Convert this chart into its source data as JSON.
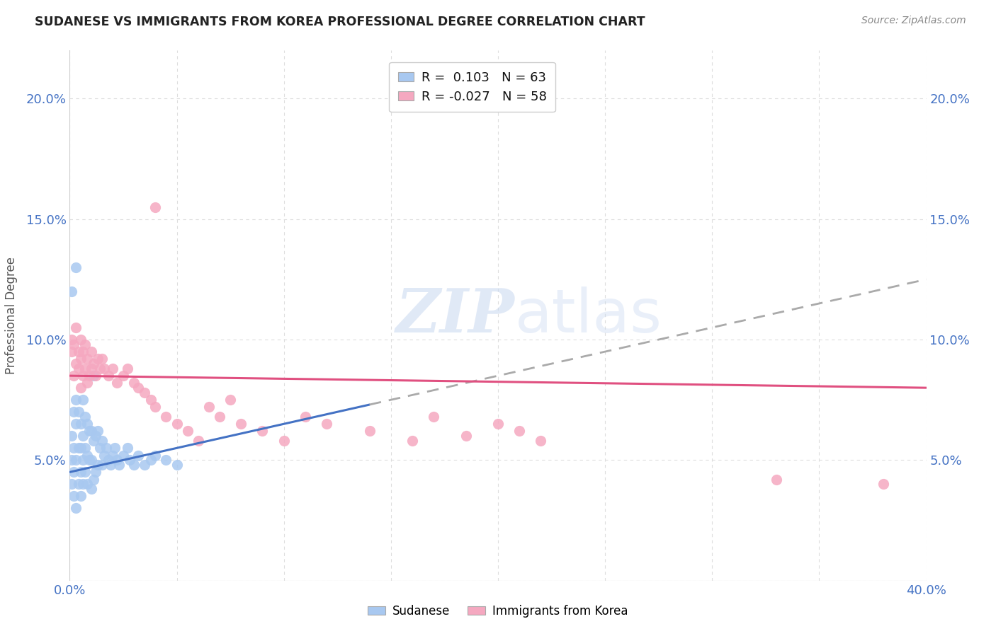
{
  "title": "SUDANESE VS IMMIGRANTS FROM KOREA PROFESSIONAL DEGREE CORRELATION CHART",
  "source": "Source: ZipAtlas.com",
  "ylabel": "Professional Degree",
  "xlim": [
    0.0,
    0.4
  ],
  "ylim": [
    0.0,
    0.22
  ],
  "x_ticks": [
    0.0,
    0.05,
    0.1,
    0.15,
    0.2,
    0.25,
    0.3,
    0.35,
    0.4
  ],
  "y_ticks": [
    0.0,
    0.05,
    0.1,
    0.15,
    0.2
  ],
  "blue_R": 0.103,
  "blue_N": 63,
  "pink_R": -0.027,
  "pink_N": 58,
  "blue_color": "#A8C8F0",
  "pink_color": "#F5A8C0",
  "blue_line_color": "#4472C4",
  "pink_line_color": "#E05080",
  "dash_color": "#AAAAAA",
  "watermark_color": "#C8D8F0",
  "blue_scatter_x": [
    0.001,
    0.001,
    0.001,
    0.002,
    0.002,
    0.002,
    0.002,
    0.003,
    0.003,
    0.003,
    0.003,
    0.004,
    0.004,
    0.004,
    0.005,
    0.005,
    0.005,
    0.005,
    0.006,
    0.006,
    0.006,
    0.006,
    0.007,
    0.007,
    0.007,
    0.008,
    0.008,
    0.008,
    0.009,
    0.009,
    0.01,
    0.01,
    0.01,
    0.011,
    0.011,
    0.012,
    0.012,
    0.013,
    0.013,
    0.014,
    0.015,
    0.015,
    0.016,
    0.017,
    0.018,
    0.019,
    0.02,
    0.021,
    0.022,
    0.023,
    0.025,
    0.027,
    0.028,
    0.03,
    0.032,
    0.035,
    0.038,
    0.04,
    0.045,
    0.05,
    0.011,
    0.003,
    0.001
  ],
  "blue_scatter_y": [
    0.04,
    0.05,
    0.06,
    0.035,
    0.045,
    0.055,
    0.07,
    0.03,
    0.05,
    0.065,
    0.075,
    0.04,
    0.055,
    0.07,
    0.035,
    0.045,
    0.055,
    0.065,
    0.04,
    0.05,
    0.06,
    0.075,
    0.045,
    0.055,
    0.068,
    0.04,
    0.052,
    0.065,
    0.05,
    0.062,
    0.038,
    0.05,
    0.062,
    0.042,
    0.058,
    0.045,
    0.06,
    0.048,
    0.062,
    0.055,
    0.048,
    0.058,
    0.052,
    0.055,
    0.05,
    0.048,
    0.052,
    0.055,
    0.05,
    0.048,
    0.052,
    0.055,
    0.05,
    0.048,
    0.052,
    0.048,
    0.05,
    0.052,
    0.05,
    0.048,
    0.085,
    0.13,
    0.12
  ],
  "pink_scatter_x": [
    0.001,
    0.001,
    0.002,
    0.002,
    0.003,
    0.003,
    0.004,
    0.004,
    0.005,
    0.005,
    0.005,
    0.006,
    0.006,
    0.007,
    0.007,
    0.008,
    0.008,
    0.009,
    0.01,
    0.01,
    0.011,
    0.012,
    0.013,
    0.014,
    0.015,
    0.016,
    0.018,
    0.02,
    0.022,
    0.025,
    0.027,
    0.03,
    0.032,
    0.035,
    0.038,
    0.04,
    0.045,
    0.05,
    0.055,
    0.06,
    0.065,
    0.07,
    0.075,
    0.08,
    0.09,
    0.1,
    0.11,
    0.12,
    0.14,
    0.16,
    0.17,
    0.185,
    0.2,
    0.21,
    0.22,
    0.33,
    0.38,
    0.04
  ],
  "pink_scatter_y": [
    0.095,
    0.1,
    0.085,
    0.098,
    0.09,
    0.105,
    0.088,
    0.095,
    0.08,
    0.092,
    0.1,
    0.085,
    0.095,
    0.088,
    0.098,
    0.082,
    0.092,
    0.085,
    0.088,
    0.095,
    0.09,
    0.085,
    0.092,
    0.088,
    0.092,
    0.088,
    0.085,
    0.088,
    0.082,
    0.085,
    0.088,
    0.082,
    0.08,
    0.078,
    0.075,
    0.072,
    0.068,
    0.065,
    0.062,
    0.058,
    0.072,
    0.068,
    0.075,
    0.065,
    0.062,
    0.058,
    0.068,
    0.065,
    0.062,
    0.058,
    0.068,
    0.06,
    0.065,
    0.062,
    0.058,
    0.042,
    0.04,
    0.155
  ],
  "background_color": "#FFFFFF",
  "grid_color": "#DDDDDD"
}
